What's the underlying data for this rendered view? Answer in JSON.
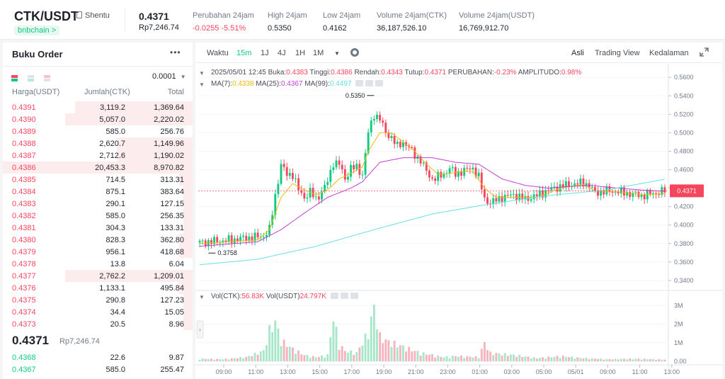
{
  "header": {
    "pair": "CTK/USDT",
    "project": "Shentu",
    "chain": "bnbchain >",
    "last_price": "0.4371",
    "last_price_idr": "Rp7,246.74",
    "stats": [
      {
        "label": "Perubahan 24jam",
        "value": "-0.0255 -5.51%",
        "color": "red"
      },
      {
        "label": "High 24jam",
        "value": "0.5350",
        "color": ""
      },
      {
        "label": "Low 24jam",
        "value": "0.4162",
        "color": ""
      },
      {
        "label": "Volume 24jam(CTK)",
        "value": "36,187,526.10",
        "color": ""
      },
      {
        "label": "Volume 24jam(USDT)",
        "value": "16,769,912.70",
        "color": ""
      }
    ]
  },
  "orderbook": {
    "title": "Buku Order",
    "more": "•••",
    "precision": "0.0001",
    "headers": {
      "price": "Harga(USDT)",
      "amount": "Jumlah(CTK)",
      "total": "Total"
    },
    "asks": [
      {
        "price": "0.4391",
        "amount": "3,119.2",
        "total": "1,369.64",
        "depth": 0.62
      },
      {
        "price": "0.4390",
        "amount": "5,057.0",
        "total": "2,220.02",
        "depth": 0.67
      },
      {
        "price": "0.4389",
        "amount": "585.0",
        "total": "256.76",
        "depth": 0.0
      },
      {
        "price": "0.4388",
        "amount": "2,620.7",
        "total": "1,149.96",
        "depth": 0.4
      },
      {
        "price": "0.4387",
        "amount": "2,712.6",
        "total": "1,190.02",
        "depth": 0.4
      },
      {
        "price": "0.4386",
        "amount": "20,453.3",
        "total": "8,970.82",
        "depth": 1.0
      },
      {
        "price": "0.4385",
        "amount": "714.5",
        "total": "313.31",
        "depth": 0.07
      },
      {
        "price": "0.4384",
        "amount": "875.1",
        "total": "383.64",
        "depth": 0.05
      },
      {
        "price": "0.4383",
        "amount": "290.1",
        "total": "127.15",
        "depth": 0.05
      },
      {
        "price": "0.4382",
        "amount": "585.0",
        "total": "256.35",
        "depth": 0.05
      },
      {
        "price": "0.4381",
        "amount": "304.3",
        "total": "133.31",
        "depth": 0.05
      },
      {
        "price": "0.4380",
        "amount": "828.3",
        "total": "362.80",
        "depth": 0.07
      },
      {
        "price": "0.4379",
        "amount": "956.1",
        "total": "418.68",
        "depth": 0.07
      },
      {
        "price": "0.4378",
        "amount": "13.8",
        "total": "6.04",
        "depth": 0.0
      },
      {
        "price": "0.4377",
        "amount": "2,762.2",
        "total": "1,209.01",
        "depth": 0.67
      },
      {
        "price": "0.4376",
        "amount": "1,133.1",
        "total": "495.84",
        "depth": 0.07
      },
      {
        "price": "0.4375",
        "amount": "290.8",
        "total": "127.23",
        "depth": 0.05
      },
      {
        "price": "0.4374",
        "amount": "34.4",
        "total": "15.05",
        "depth": 0.05
      },
      {
        "price": "0.4373",
        "amount": "20.5",
        "total": "8.96",
        "depth": 0.05
      }
    ],
    "mid_price": "0.4371",
    "mid_price_idr": "Rp7,246.74",
    "bids": [
      {
        "price": "0.4368",
        "amount": "22.6",
        "total": "9.87",
        "depth": 0.0
      },
      {
        "price": "0.4367",
        "amount": "585.0",
        "total": "255.47",
        "depth": 0.0
      }
    ]
  },
  "chart_toolbar": {
    "time_label": "Waktu",
    "intervals": [
      "15m",
      "1J",
      "4J",
      "1H",
      "1M"
    ],
    "active_interval": "15m",
    "views": [
      "Asli",
      "Trading View",
      "Kedalaman"
    ],
    "active_view": "Asli"
  },
  "chart_info": {
    "date": "2025/05/01 12:45",
    "open_label": "Buka:",
    "open": "0.4383",
    "high_label": "Tinggi:",
    "high": "0.4386",
    "low_label": "Rendah:",
    "low": "0.4343",
    "close_label": "Tutup:",
    "close": "0.4371",
    "change_label": "PERUBAHAN:",
    "change": "-0.23%",
    "amp_label": "AMPLITUDO:",
    "amp": "0.98%",
    "ma7_label": "MA(7):",
    "ma7": "0.4338",
    "ma25_label": "MA(25):",
    "ma25": "0.4367",
    "ma99_label": "MA(99):",
    "ma99": "0.4497",
    "vol_ctk_label": "Vol(CTK):",
    "vol_ctk": "56.83K",
    "vol_usdt_label": "Vol(USDT)",
    "vol_usdt": "24.797K"
  },
  "colors": {
    "up": "#0ecb81",
    "down": "#f6465d",
    "ma7": "#f0b90b",
    "ma25": "#c13fd1",
    "ma99": "#66e0e8"
  },
  "chart_data": {
    "type": "candlestick",
    "price_axis_ticks": [
      "0.5600",
      "0.5400",
      "0.5200",
      "0.5000",
      "0.4800",
      "0.4600",
      "0.4400",
      "0.4200",
      "0.4000",
      "0.3800",
      "0.3600",
      "0.3400"
    ],
    "price_ylim": [
      0.333,
      0.564
    ],
    "volume_axis_ticks": [
      "3M",
      "2M",
      "1M",
      "0.00"
    ],
    "volume_ylim": [
      0,
      3.2
    ],
    "time_axis_ticks": [
      "09:00",
      "11:00",
      "13:00",
      "15:00",
      "17:00",
      "19:00",
      "21:00",
      "23:00",
      "01:00",
      "03:00",
      "05:00",
      "05/01",
      "09:00",
      "11:00",
      "13:00"
    ],
    "max_label": "0.5350",
    "min_label": "0.3758",
    "current_price": "0.4371",
    "close_keypoints": [
      [
        0,
        0.381
      ],
      [
        8,
        0.383
      ],
      [
        16,
        0.386
      ],
      [
        22,
        0.388
      ],
      [
        24,
        0.395
      ],
      [
        26,
        0.432
      ],
      [
        28,
        0.465
      ],
      [
        30,
        0.455
      ],
      [
        32,
        0.455
      ],
      [
        34,
        0.438
      ],
      [
        36,
        0.43
      ],
      [
        38,
        0.436
      ],
      [
        40,
        0.428
      ],
      [
        42,
        0.436
      ],
      [
        44,
        0.447
      ],
      [
        46,
        0.468
      ],
      [
        48,
        0.466
      ],
      [
        50,
        0.45
      ],
      [
        52,
        0.462
      ],
      [
        54,
        0.462
      ],
      [
        56,
        0.455
      ],
      [
        58,
        0.5
      ],
      [
        60,
        0.52
      ],
      [
        62,
        0.515
      ],
      [
        64,
        0.5
      ],
      [
        66,
        0.495
      ],
      [
        68,
        0.485
      ],
      [
        70,
        0.49
      ],
      [
        72,
        0.484
      ],
      [
        74,
        0.476
      ],
      [
        76,
        0.47
      ],
      [
        78,
        0.458
      ],
      [
        80,
        0.45
      ],
      [
        82,
        0.452
      ],
      [
        84,
        0.455
      ],
      [
        86,
        0.462
      ],
      [
        88,
        0.455
      ],
      [
        90,
        0.458
      ],
      [
        92,
        0.46
      ],
      [
        94,
        0.462
      ],
      [
        96,
        0.452
      ],
      [
        98,
        0.428
      ],
      [
        100,
        0.424
      ],
      [
        104,
        0.43
      ],
      [
        108,
        0.433
      ],
      [
        112,
        0.428
      ],
      [
        116,
        0.432
      ],
      [
        120,
        0.438
      ],
      [
        124,
        0.442
      ],
      [
        128,
        0.444
      ],
      [
        132,
        0.446
      ],
      [
        134,
        0.443
      ],
      [
        136,
        0.435
      ],
      [
        140,
        0.437
      ],
      [
        144,
        0.436
      ],
      [
        148,
        0.434
      ],
      [
        152,
        0.432
      ],
      [
        156,
        0.434
      ],
      [
        160,
        0.4371
      ]
    ],
    "ma7_keypoints": [
      [
        0,
        0.38
      ],
      [
        20,
        0.384
      ],
      [
        24,
        0.395
      ],
      [
        28,
        0.43
      ],
      [
        32,
        0.445
      ],
      [
        36,
        0.438
      ],
      [
        40,
        0.433
      ],
      [
        44,
        0.438
      ],
      [
        48,
        0.45
      ],
      [
        52,
        0.456
      ],
      [
        56,
        0.463
      ],
      [
        58,
        0.48
      ],
      [
        62,
        0.5
      ],
      [
        66,
        0.5
      ],
      [
        70,
        0.49
      ],
      [
        74,
        0.48
      ],
      [
        78,
        0.466
      ],
      [
        82,
        0.455
      ],
      [
        86,
        0.456
      ],
      [
        90,
        0.458
      ],
      [
        94,
        0.458
      ],
      [
        98,
        0.44
      ],
      [
        102,
        0.43
      ],
      [
        108,
        0.43
      ],
      [
        116,
        0.43
      ],
      [
        124,
        0.44
      ],
      [
        132,
        0.444
      ],
      [
        136,
        0.437
      ],
      [
        144,
        0.436
      ],
      [
        152,
        0.433
      ],
      [
        160,
        0.4338
      ]
    ],
    "ma25_keypoints": [
      [
        0,
        0.377
      ],
      [
        20,
        0.382
      ],
      [
        28,
        0.395
      ],
      [
        36,
        0.413
      ],
      [
        44,
        0.43
      ],
      [
        52,
        0.44
      ],
      [
        56,
        0.447
      ],
      [
        62,
        0.468
      ],
      [
        70,
        0.473
      ],
      [
        80,
        0.473
      ],
      [
        88,
        0.468
      ],
      [
        96,
        0.466
      ],
      [
        104,
        0.45
      ],
      [
        112,
        0.443
      ],
      [
        120,
        0.44
      ],
      [
        128,
        0.442
      ],
      [
        134,
        0.443
      ],
      [
        144,
        0.44
      ],
      [
        152,
        0.438
      ],
      [
        160,
        0.4367
      ]
    ],
    "ma99_keypoints": [
      [
        0,
        0.357
      ],
      [
        20,
        0.363
      ],
      [
        40,
        0.377
      ],
      [
        60,
        0.395
      ],
      [
        80,
        0.412
      ],
      [
        100,
        0.423
      ],
      [
        120,
        0.432
      ],
      [
        140,
        0.438
      ],
      [
        160,
        0.4497
      ]
    ],
    "volume_keypoints": [
      [
        0,
        0.12
      ],
      [
        8,
        0.1
      ],
      [
        16,
        0.2
      ],
      [
        22,
        0.5
      ],
      [
        24,
        1.5
      ],
      [
        26,
        1.9
      ],
      [
        28,
        1.0
      ],
      [
        30,
        0.8
      ],
      [
        32,
        0.6
      ],
      [
        36,
        0.3
      ],
      [
        40,
        0.2
      ],
      [
        44,
        0.3
      ],
      [
        46,
        2.1
      ],
      [
        48,
        0.8
      ],
      [
        50,
        0.5
      ],
      [
        54,
        0.4
      ],
      [
        58,
        1.4
      ],
      [
        60,
        2.6
      ],
      [
        62,
        1.2
      ],
      [
        64,
        1.0
      ],
      [
        68,
        0.8
      ],
      [
        72,
        0.6
      ],
      [
        76,
        0.4
      ],
      [
        80,
        0.3
      ],
      [
        84,
        0.2
      ],
      [
        88,
        0.25
      ],
      [
        96,
        0.2
      ],
      [
        98,
        0.9
      ],
      [
        100,
        0.4
      ],
      [
        108,
        0.3
      ],
      [
        116,
        0.15
      ],
      [
        124,
        0.25
      ],
      [
        132,
        0.15
      ],
      [
        140,
        0.1
      ],
      [
        150,
        0.12
      ],
      [
        160,
        0.08
      ]
    ]
  }
}
